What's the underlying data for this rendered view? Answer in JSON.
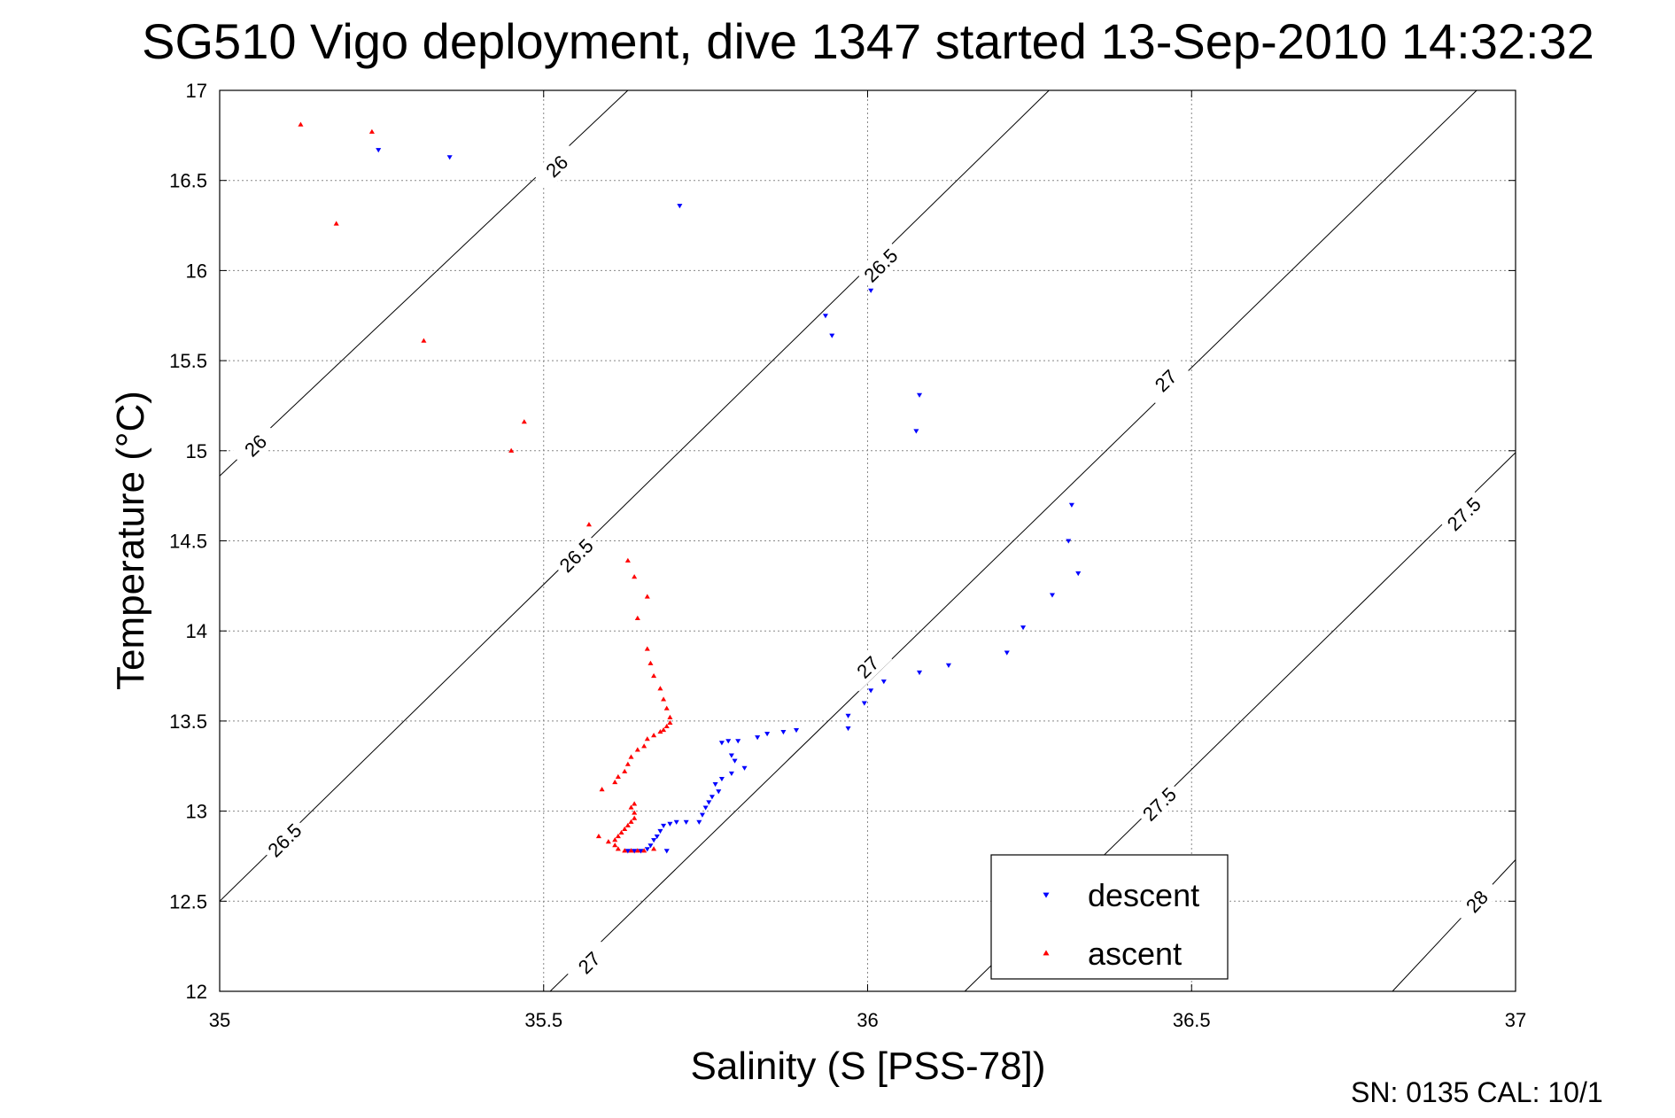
{
  "chart_data": {
    "type": "scatter",
    "title": "SG510 Vigo deployment, dive 1347 started 13-Sep-2010 14:32:32",
    "xlabel": "Salinity (S [PSS-78])",
    "ylabel": "Temperature (°C)",
    "xlim": [
      35,
      37
    ],
    "ylim": [
      12,
      17
    ],
    "x_ticks": [
      35,
      35.5,
      36,
      36.5,
      37
    ],
    "y_ticks": [
      12,
      12.5,
      13,
      13.5,
      14,
      14.5,
      15,
      15.5,
      16,
      16.5,
      17
    ],
    "x_tick_labels": [
      "35",
      "35.5",
      "36",
      "36.5",
      "37"
    ],
    "y_tick_labels": [
      "12",
      "12.5",
      "13",
      "13.5",
      "14",
      "14.5",
      "15",
      "15.5",
      "16",
      "16.5",
      "17"
    ],
    "grid": true,
    "legend_position": "bottom-right",
    "footer": "SN: 0135  CAL: 10/1",
    "series": [
      {
        "name": "descent",
        "color": "#0000ff",
        "marker": "triangle-down",
        "points": [
          [
            35.245,
            16.67
          ],
          [
            35.355,
            16.63
          ],
          [
            35.71,
            16.36
          ],
          [
            36.005,
            15.89
          ],
          [
            35.935,
            15.75
          ],
          [
            35.945,
            15.64
          ],
          [
            36.08,
            15.31
          ],
          [
            36.075,
            15.11
          ],
          [
            36.315,
            14.7
          ],
          [
            36.31,
            14.5
          ],
          [
            36.325,
            14.32
          ],
          [
            36.285,
            14.2
          ],
          [
            36.24,
            14.02
          ],
          [
            36.215,
            13.88
          ],
          [
            36.125,
            13.81
          ],
          [
            36.08,
            13.77
          ],
          [
            36.025,
            13.72
          ],
          [
            36.005,
            13.67
          ],
          [
            35.995,
            13.6
          ],
          [
            35.97,
            13.53
          ],
          [
            35.97,
            13.46
          ],
          [
            35.89,
            13.45
          ],
          [
            35.87,
            13.44
          ],
          [
            35.845,
            13.43
          ],
          [
            35.83,
            13.41
          ],
          [
            35.8,
            13.39
          ],
          [
            35.785,
            13.39
          ],
          [
            35.775,
            13.38
          ],
          [
            35.79,
            13.31
          ],
          [
            35.795,
            13.28
          ],
          [
            35.81,
            13.24
          ],
          [
            35.79,
            13.21
          ],
          [
            35.775,
            13.18
          ],
          [
            35.765,
            13.15
          ],
          [
            35.77,
            13.11
          ],
          [
            35.76,
            13.08
          ],
          [
            35.755,
            13.05
          ],
          [
            35.75,
            13.02
          ],
          [
            35.745,
            12.98
          ],
          [
            35.74,
            12.94
          ],
          [
            35.72,
            12.94
          ],
          [
            35.705,
            12.94
          ],
          [
            35.695,
            12.93
          ],
          [
            35.685,
            12.92
          ],
          [
            35.68,
            12.89
          ],
          [
            35.675,
            12.86
          ],
          [
            35.67,
            12.84
          ],
          [
            35.665,
            12.81
          ],
          [
            35.66,
            12.79
          ],
          [
            35.65,
            12.78
          ],
          [
            35.64,
            12.78
          ],
          [
            35.63,
            12.78
          ],
          [
            35.69,
            12.78
          ]
        ]
      },
      {
        "name": "ascent",
        "color": "#ff0000",
        "marker": "triangle-up",
        "points": [
          [
            35.125,
            16.81
          ],
          [
            35.235,
            16.77
          ],
          [
            35.18,
            16.26
          ],
          [
            35.315,
            15.61
          ],
          [
            35.47,
            15.16
          ],
          [
            35.45,
            15.0
          ],
          [
            35.57,
            14.59
          ],
          [
            35.63,
            14.39
          ],
          [
            35.64,
            14.3
          ],
          [
            35.66,
            14.19
          ],
          [
            35.645,
            14.07
          ],
          [
            35.66,
            13.9
          ],
          [
            35.665,
            13.82
          ],
          [
            35.67,
            13.75
          ],
          [
            35.68,
            13.68
          ],
          [
            35.685,
            13.62
          ],
          [
            35.69,
            13.57
          ],
          [
            35.695,
            13.52
          ],
          [
            35.695,
            13.49
          ],
          [
            35.69,
            13.47
          ],
          [
            35.685,
            13.45
          ],
          [
            35.68,
            13.44
          ],
          [
            35.67,
            13.42
          ],
          [
            35.66,
            13.4
          ],
          [
            35.655,
            13.36
          ],
          [
            35.645,
            13.34
          ],
          [
            35.635,
            13.3
          ],
          [
            35.63,
            13.26
          ],
          [
            35.625,
            13.22
          ],
          [
            35.615,
            13.19
          ],
          [
            35.61,
            13.16
          ],
          [
            35.59,
            13.12
          ],
          [
            35.64,
            13.04
          ],
          [
            35.635,
            13.02
          ],
          [
            35.64,
            12.99
          ],
          [
            35.64,
            12.96
          ],
          [
            35.635,
            12.94
          ],
          [
            35.63,
            12.92
          ],
          [
            35.625,
            12.9
          ],
          [
            35.62,
            12.88
          ],
          [
            35.615,
            12.86
          ],
          [
            35.61,
            12.84
          ],
          [
            35.61,
            12.81
          ],
          [
            35.615,
            12.79
          ],
          [
            35.625,
            12.78
          ],
          [
            35.635,
            12.78
          ],
          [
            35.645,
            12.78
          ],
          [
            35.655,
            12.78
          ],
          [
            35.585,
            12.86
          ],
          [
            35.6,
            12.83
          ],
          [
            35.67,
            12.79
          ]
        ]
      }
    ],
    "contours": [
      {
        "level": "26",
        "from": [
          35,
          14.86
        ],
        "to": [
          35.63,
          17
        ],
        "labels": [
          [
            35.055,
            15.03
          ],
          [
            35.52,
            16.58
          ]
        ]
      },
      {
        "level": "26.5",
        "from": [
          35,
          12.5
        ],
        "to": [
          36.28,
          17
        ],
        "labels": [
          [
            35.1,
            12.84
          ],
          [
            35.55,
            14.42
          ],
          [
            36.02,
            16.03
          ]
        ]
      },
      {
        "level": "27",
        "from": [
          35.51,
          12
        ],
        "to": [
          36.94,
          17
        ],
        "labels": [
          [
            35.57,
            12.16
          ],
          [
            36.0,
            13.8
          ],
          [
            36.46,
            15.39
          ]
        ]
      },
      {
        "level": "27.5",
        "from": [
          36.15,
          12
        ],
        "to": [
          37,
          14.99
        ],
        "labels": [
          [
            36.45,
            13.04
          ],
          [
            36.92,
            14.65
          ]
        ]
      },
      {
        "level": "28",
        "from": [
          36.81,
          12
        ],
        "to": [
          37,
          12.73
        ],
        "labels": [
          [
            36.94,
            12.5
          ]
        ]
      }
    ]
  }
}
